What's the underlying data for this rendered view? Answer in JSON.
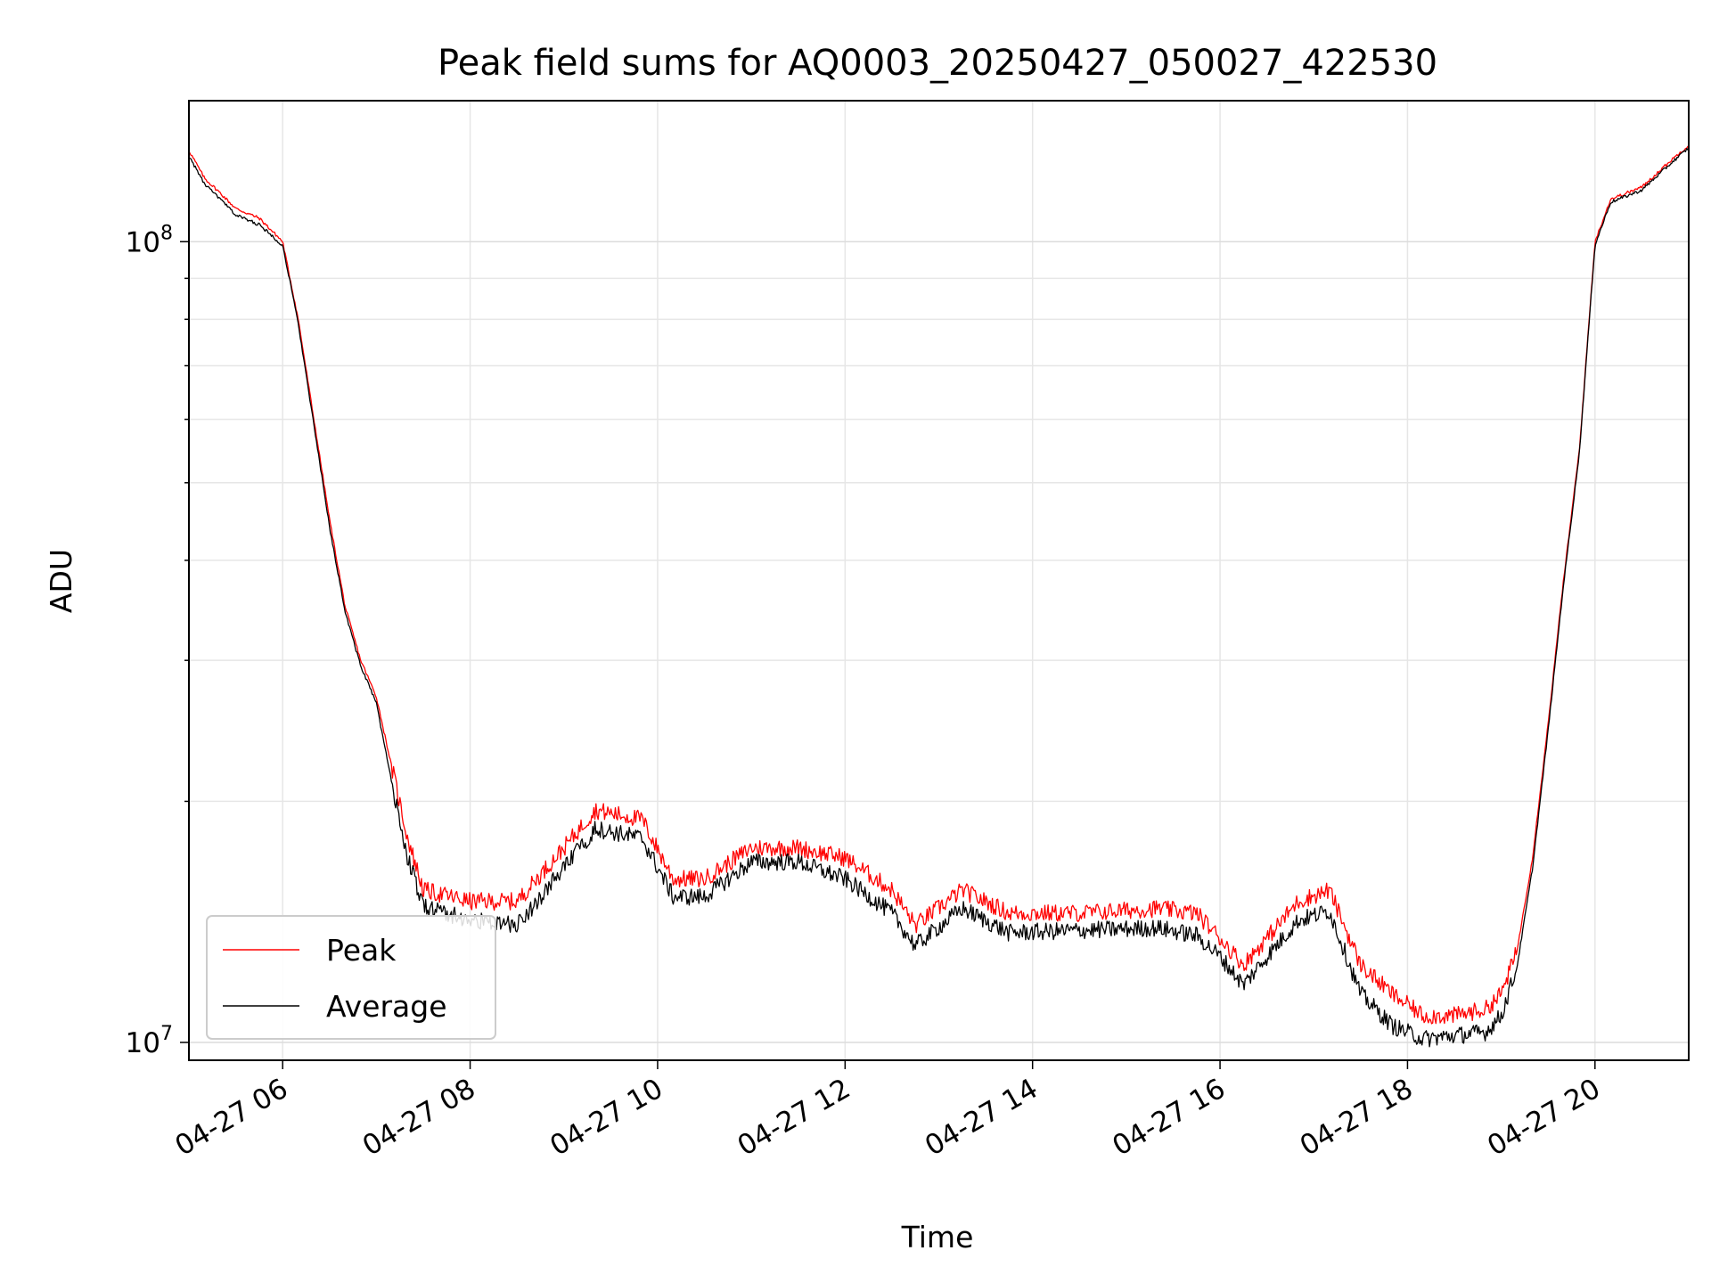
{
  "chart_data": {
    "type": "line",
    "title": "Peak field sums for AQ0003_20250427_050027_422530",
    "xlabel": "Time",
    "ylabel": "ADU",
    "yscale": "log",
    "ylim": [
      9500000,
      150000000
    ],
    "xlim": [
      "04-27 05:00",
      "04-27 21:00"
    ],
    "grid": true,
    "legend_position": "lower left",
    "x_ticks": [
      "04-27 06",
      "04-27 08",
      "04-27 10",
      "04-27 12",
      "04-27 14",
      "04-27 16",
      "04-27 18",
      "04-27 20"
    ],
    "y_ticks": [
      {
        "base": "10",
        "exp": "7",
        "value": 10000000
      },
      {
        "base": "10",
        "exp": "8",
        "value": 100000000
      }
    ],
    "x": [
      "04-27 05:00",
      "04-27 05:10",
      "04-27 05:20",
      "04-27 05:30",
      "04-27 05:45",
      "04-27 06:00",
      "04-27 06:10",
      "04-27 06:20",
      "04-27 06:30",
      "04-27 06:40",
      "04-27 06:50",
      "04-27 07:00",
      "04-27 07:10",
      "04-27 07:20",
      "04-27 07:30",
      "04-27 08:00",
      "04-27 08:30",
      "04-27 09:00",
      "04-27 09:20",
      "04-27 09:50",
      "04-27 10:10",
      "04-27 10:30",
      "04-27 11:00",
      "04-27 11:30",
      "04-27 12:00",
      "04-27 12:30",
      "04-27 12:45",
      "04-27 13:15",
      "04-27 13:45",
      "04-27 14:30",
      "04-27 15:20",
      "04-27 15:45",
      "04-27 16:00",
      "04-27 16:15",
      "04-27 16:30",
      "04-27 16:50",
      "04-27 17:10",
      "04-27 17:30",
      "04-27 17:50",
      "04-27 18:10",
      "04-27 18:30",
      "04-27 18:50",
      "04-27 19:00",
      "04-27 19:10",
      "04-27 19:20",
      "04-27 19:30",
      "04-27 19:40",
      "04-27 19:50",
      "04-27 20:00",
      "04-27 20:10",
      "04-27 20:30",
      "04-27 20:50",
      "04-27 21:00"
    ],
    "series": [
      {
        "name": "Peak",
        "color": "#ff0000",
        "values": [
          130000000,
          120000000,
          115000000,
          110000000,
          107000000,
          100000000,
          80000000,
          60000000,
          45000000,
          35000000,
          30000000,
          27000000,
          22000000,
          18000000,
          15500000,
          15000000,
          15000000,
          17500000,
          19500000,
          19000000,
          16000000,
          16000000,
          17500000,
          17500000,
          17000000,
          15500000,
          14000000,
          15500000,
          14500000,
          14500000,
          14700000,
          14500000,
          13500000,
          12500000,
          13500000,
          15000000,
          15500000,
          12500000,
          11500000,
          10800000,
          10800000,
          11000000,
          11500000,
          13000000,
          17000000,
          25000000,
          38000000,
          55000000,
          100000000,
          113000000,
          117000000,
          127000000,
          132000000
        ]
      },
      {
        "name": "Average",
        "color": "#000000",
        "values": [
          128000000,
          118000000,
          113000000,
          108000000,
          105000000,
          99000000,
          79000000,
          59000000,
          44000000,
          34500000,
          29500000,
          26500000,
          21000000,
          17000000,
          14800000,
          14200000,
          14000000,
          16500000,
          18500000,
          18000000,
          15200000,
          15200000,
          16800000,
          16800000,
          16000000,
          14500000,
          13200000,
          14700000,
          13700000,
          13800000,
          13900000,
          13600000,
          12800000,
          11800000,
          12800000,
          14200000,
          14600000,
          11500000,
          10500000,
          10100000,
          10200000,
          10300000,
          10800000,
          12400000,
          16500000,
          24500000,
          37500000,
          54500000,
          99000000,
          112000000,
          116000000,
          126000000,
          131000000
        ]
      }
    ]
  }
}
